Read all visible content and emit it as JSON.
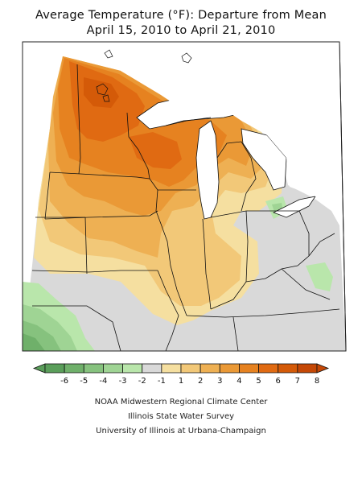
{
  "title_line1": "Average Temperature (°F): Departure from Mean",
  "title_line2": "April 15, 2010 to April 21, 2010",
  "legend": {
    "labels": [
      "-6",
      "-5",
      "-4",
      "-3",
      "-2",
      "-1",
      "1",
      "2",
      "3",
      "4",
      "5",
      "6",
      "7",
      "8"
    ],
    "colors": [
      "#5a9e5a",
      "#6fb06a",
      "#86c27e",
      "#9fd494",
      "#b9e6ab",
      "#d9d9d9",
      "#f5dfa0",
      "#f2c878",
      "#eeb053",
      "#ea9936",
      "#e68220",
      "#e06a12",
      "#d45a08",
      "#c54806"
    ]
  },
  "credits": {
    "line1": "NOAA Midwestern Regional Climate Center",
    "line2": "Illinois State Water Survey",
    "line3": "University of Illinois at Urbana-Champaign"
  }
}
